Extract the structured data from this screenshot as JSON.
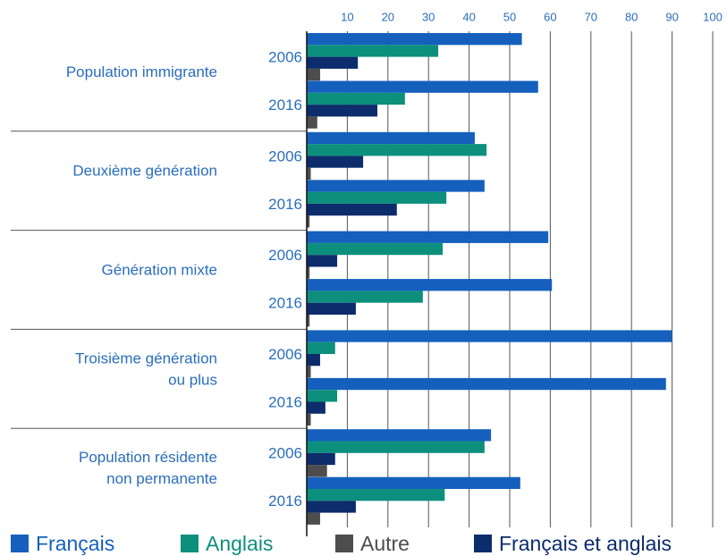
{
  "chart_data": {
    "type": "bar",
    "orientation": "horizontal",
    "groups": [
      [
        "Population immigrante"
      ],
      [
        "Deuxième génération"
      ],
      [
        "Génération mixte"
      ],
      [
        "Troisième génération",
        "ou plus"
      ],
      [
        "Population résidente",
        "non permanente"
      ]
    ],
    "categories": [
      "2006",
      "2016",
      "2006",
      "2016",
      "2006",
      "2016",
      "2006",
      "2016",
      "2006",
      "2016"
    ],
    "series": [
      {
        "name": "Français",
        "color": "#1560bd",
        "values": [
          53,
          57,
          41.4,
          43.8,
          59.5,
          60.4,
          90,
          88.5,
          45.4,
          52.6
        ]
      },
      {
        "name": "Anglais",
        "color": "#0d8f7d",
        "values": [
          32.4,
          24.2,
          44.3,
          34.4,
          33.5,
          28.6,
          7,
          7.5,
          43.8,
          34
        ]
      },
      {
        "name": "Autre",
        "color": "#4d4d4d",
        "values": [
          3.3,
          2.6,
          1,
          0.7,
          0.7,
          0.7,
          1,
          1,
          5,
          3.3
        ]
      },
      {
        "name": "Français et anglais",
        "color": "#0d2c6c",
        "values": [
          12.6,
          17.4,
          13.9,
          22.2,
          7.5,
          12.1,
          3.3,
          4.6,
          7,
          12.1
        ]
      }
    ],
    "bar_order": [
      "Français",
      "Anglais",
      "Français et anglais",
      "Autre"
    ],
    "xlim": [
      0,
      100
    ],
    "xticks": [
      10,
      20,
      30,
      40,
      50,
      60,
      70,
      80,
      90,
      100
    ],
    "grid": true
  }
}
